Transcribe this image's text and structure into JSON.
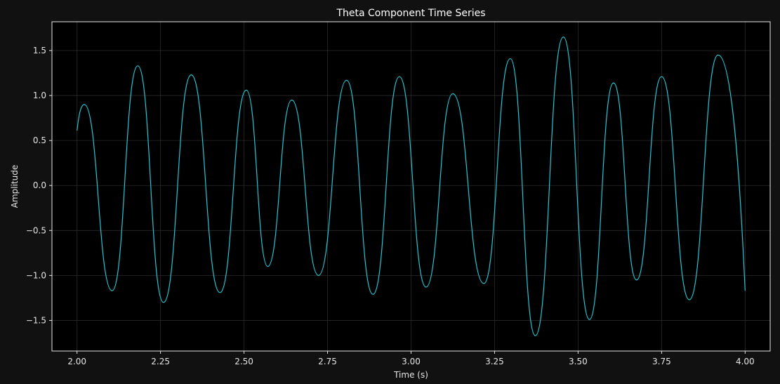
{
  "chart_data": {
    "type": "line",
    "title": "Theta Component Time Series",
    "xlabel": "Time (s)",
    "ylabel": "Amplitude",
    "xlim": [
      1.925,
      4.075
    ],
    "ylim": [
      -1.84,
      1.82
    ],
    "xticks": [
      2.0,
      2.25,
      2.5,
      2.75,
      3.0,
      3.25,
      3.5,
      3.75,
      4.0
    ],
    "xtick_labels": [
      "2.00",
      "2.25",
      "2.50",
      "2.75",
      "3.00",
      "3.25",
      "3.50",
      "3.75",
      "4.00"
    ],
    "yticks": [
      -1.5,
      -1.0,
      -0.5,
      0.0,
      0.5,
      1.0,
      1.5
    ],
    "ytick_labels": [
      "−1.5",
      "−1.0",
      "−0.5",
      "0.0",
      "0.5",
      "1.0",
      "1.5"
    ],
    "grid": true,
    "colors": {
      "background": "#000000",
      "figure_background": "#111111",
      "line": "#22c7d6",
      "grid": "#2a2a2a",
      "axes": "#e6e6e6"
    },
    "series": [
      {
        "points": [
          [
            2.0,
            0.61
          ],
          [
            2.022,
            0.9
          ],
          [
            2.105,
            -1.17
          ],
          [
            2.182,
            1.33
          ],
          [
            2.259,
            -1.3
          ],
          [
            2.342,
            1.23
          ],
          [
            2.428,
            -1.19
          ],
          [
            2.507,
            1.06
          ],
          [
            2.571,
            -0.9
          ],
          [
            2.643,
            0.95
          ],
          [
            2.723,
            -1.0
          ],
          [
            2.807,
            1.17
          ],
          [
            2.886,
            -1.21
          ],
          [
            2.965,
            1.21
          ],
          [
            3.045,
            -1.13
          ],
          [
            3.125,
            1.02
          ],
          [
            3.218,
            -1.09
          ],
          [
            3.297,
            1.41
          ],
          [
            3.372,
            -1.67
          ],
          [
            3.456,
            1.65
          ],
          [
            3.534,
            -1.49
          ],
          [
            3.606,
            1.14
          ],
          [
            3.675,
            -1.05
          ],
          [
            3.75,
            1.21
          ],
          [
            3.833,
            -1.27
          ],
          [
            3.919,
            1.45
          ],
          [
            4.0,
            -1.17
          ]
        ]
      }
    ]
  }
}
